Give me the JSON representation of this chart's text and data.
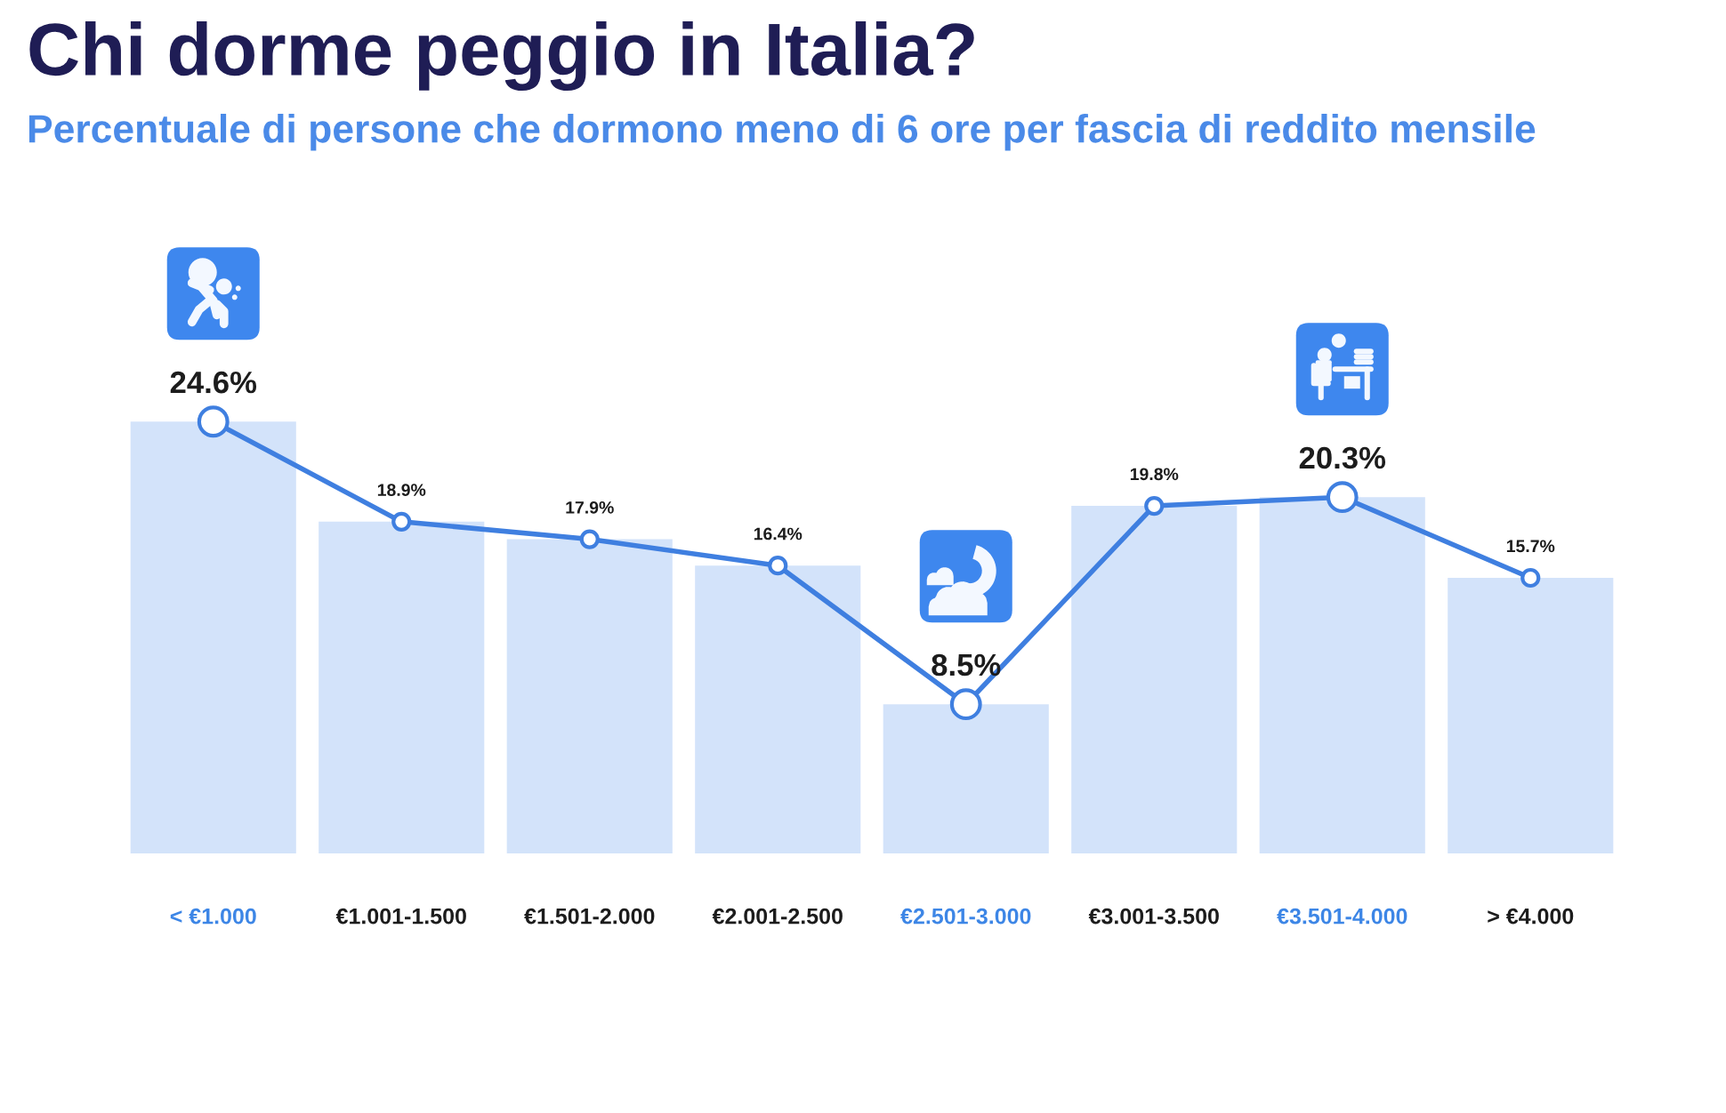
{
  "chart_data": {
    "type": "bar",
    "title": "Chi dorme peggio in Italia?",
    "subtitle": "Percentuale di persone che dormono meno di 6 ore per fascia di reddito mensile",
    "categories": [
      "< €1.000",
      "€1.001-1.500",
      "€1.501-2.000",
      "€2.001-2.500",
      "€2.501-3.000",
      "€3.001-3.500",
      "€3.501-4.000",
      "> €4.000"
    ],
    "series": [
      {
        "color": "#d3e3fa",
        "values": [
          24.6,
          18.9,
          17.9,
          16.4,
          8.5,
          19.8,
          20.3,
          15.7
        ]
      },
      {
        "type": "line",
        "color": "#3f7fe0",
        "values": [
          24.6,
          18.9,
          17.9,
          16.4,
          8.5,
          19.8,
          20.3,
          15.7
        ],
        "value_labels": [
          "24.6%",
          "18.9%",
          "17.9%",
          "16.4%",
          "8.5%",
          "19.8%",
          "20.3%",
          "15.7%"
        ]
      }
    ],
    "tick_labels": "x",
    "grid": false,
    "marker": "circle",
    "line_style": "solid"
  }
}
